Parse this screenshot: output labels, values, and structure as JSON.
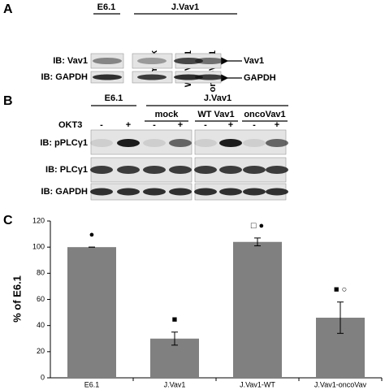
{
  "panels": {
    "a": {
      "label": "A",
      "groups": [
        "E6.1",
        "J.Vav1"
      ],
      "lanes": [
        "mock",
        "WT Vav1",
        "oncoVav1"
      ],
      "rows": [
        "IB: Vav1",
        "IB: GAPDH"
      ],
      "arrows": [
        "Vav1",
        "GAPDH"
      ]
    },
    "b": {
      "label": "B",
      "groups": [
        "E6.1",
        "J.Vav1"
      ],
      "lanes": [
        "mock",
        "WT Vav1",
        "oncoVav1"
      ],
      "treatment": "OKT3",
      "signs": [
        "-",
        "+",
        "-",
        "+",
        "-",
        "+",
        "-",
        "+"
      ],
      "rows": [
        "IB: pPLCγ1",
        "IB: PLCγ1",
        "IB: GAPDH"
      ]
    },
    "c": {
      "label": "C"
    }
  },
  "chart_data": {
    "type": "bar",
    "y_label": "% of E6.1",
    "categories": [
      "E6.1",
      "J.Vav1",
      "J.Vav1-WT",
      "J.Vav1-oncoVav"
    ],
    "values": [
      100,
      30,
      104,
      46
    ],
    "errors": [
      0,
      5,
      3,
      12
    ],
    "annotations": [
      "●",
      "■",
      "□ ●",
      "■ ○"
    ],
    "color": "#808080",
    "ylim": [
      0,
      120
    ],
    "yticks": [
      0,
      20,
      40,
      60,
      80,
      100,
      120
    ]
  }
}
